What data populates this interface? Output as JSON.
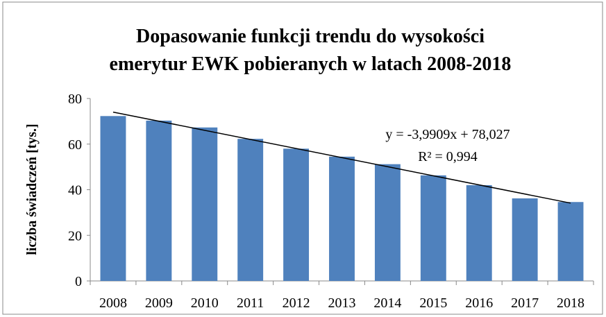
{
  "chart_data": {
    "type": "bar",
    "title": [
      "Dopasowanie funkcji trendu do wysokości",
      "emerytur EWK pobieranych w latach 2008-2018"
    ],
    "y_label": "liczba świadczeń [tys.]",
    "categories": [
      "2008",
      "2009",
      "2010",
      "2011",
      "2012",
      "2013",
      "2014",
      "2015",
      "2016",
      "2017",
      "2018"
    ],
    "values": [
      72.3,
      70.3,
      67.3,
      62.3,
      58,
      54.5,
      51.2,
      46.3,
      42,
      36.2,
      34.6
    ],
    "color": "#4f81bd",
    "ylim": [
      0,
      80
    ],
    "yticks": [
      0,
      20,
      40,
      60,
      80
    ],
    "trendline": {
      "slope": -3.9909,
      "intercept": 78.027,
      "color": "#000000",
      "equation": "y = -3,9909x + 78,027",
      "r2": "R² = 0,994"
    }
  }
}
